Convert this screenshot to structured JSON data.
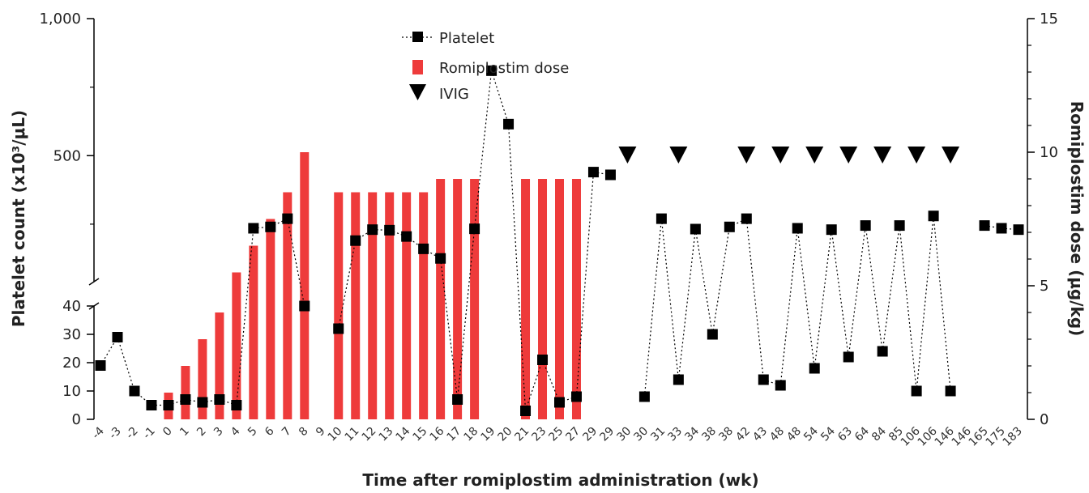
{
  "chart_data": {
    "type": "bar+line",
    "title": "",
    "xlabel": "Time after romiplostim administration (wk)",
    "ylabel_left": "Platelet count (x10³/μL)",
    "ylabel_right": "Romiplostim dose (μg/kg)",
    "y_left_axis": {
      "broken": true,
      "lower_segment": [
        0,
        40
      ],
      "upper_segment": [
        40,
        1000
      ],
      "tick_labels": [
        "0",
        "10",
        "20",
        "30",
        "40",
        "500",
        "1,000"
      ]
    },
    "y_right_axis": {
      "range": [
        0,
        15
      ],
      "tick_labels": [
        "0",
        "5",
        "10",
        "15"
      ]
    },
    "x": [
      "-4",
      "-3",
      "-2",
      "-1",
      "0",
      "1",
      "2",
      "3",
      "4",
      "5",
      "6",
      "7",
      "8",
      "9",
      "10",
      "11",
      "12",
      "13",
      "14",
      "15",
      "16",
      "17",
      "18",
      "19",
      "20",
      "21",
      "23",
      "25",
      "27",
      "29",
      "29",
      "30",
      "30",
      "31",
      "33",
      "34",
      "38",
      "38",
      "42",
      "43",
      "48",
      "48",
      "54",
      "54",
      "63",
      "64",
      "84",
      "85",
      "106",
      "106",
      "146",
      "146",
      "165",
      "175",
      "183"
    ],
    "legend": [
      "Platelet",
      "Romiplostim dose",
      "IVIG"
    ],
    "legend_position": "top-center",
    "series": [
      {
        "name": "Platelet",
        "style": "dotted line with square markers",
        "values": [
          19,
          29,
          10,
          5,
          5,
          7,
          6,
          7,
          5,
          235,
          240,
          270,
          40,
          null,
          32,
          190,
          230,
          228,
          205,
          160,
          125,
          7,
          233,
          810,
          615,
          3,
          21,
          6,
          8,
          440,
          430,
          null,
          8,
          270,
          14,
          232,
          30,
          240,
          270,
          14,
          12,
          235,
          18,
          230,
          22,
          245,
          24,
          245,
          10,
          280,
          10,
          null,
          245,
          235,
          230
        ]
      },
      {
        "name": "Romiplostim dose",
        "unit": "μg/kg",
        "values": [
          null,
          null,
          null,
          null,
          1,
          2,
          3,
          4,
          5.5,
          6.5,
          7.5,
          8.5,
          10,
          null,
          8.5,
          8.5,
          8.5,
          8.5,
          8.5,
          8.5,
          9,
          9,
          9,
          null,
          null,
          9,
          9,
          9,
          9,
          null,
          null,
          null,
          null,
          null,
          null,
          null,
          null,
          null,
          null,
          null,
          null,
          null,
          null,
          null,
          null,
          null,
          null,
          null,
          null,
          null,
          null,
          null,
          null,
          null,
          null
        ]
      },
      {
        "name": "IVIG",
        "marker": "down-triangle",
        "at": [
          "30",
          "33",
          "42",
          "48",
          "54",
          "63",
          "84",
          "106",
          "146"
        ]
      }
    ],
    "colors": {
      "bar": "#ee3b3b",
      "marker": "#000000",
      "axis": "#000000"
    }
  }
}
